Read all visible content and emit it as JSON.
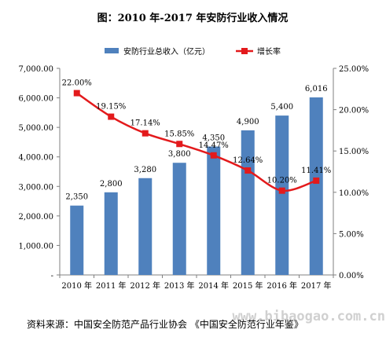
{
  "chart_data": {
    "type": "bar+line",
    "title": "图：2010 年-2017 年安防行业收入情况",
    "categories": [
      "2010 年",
      "2011 年",
      "2012 年",
      "2013 年",
      "2014 年",
      "2015 年",
      "2016 年",
      "2017 年"
    ],
    "series": [
      {
        "name": "安防行业总收入（亿元）",
        "type": "bar",
        "axis": "left",
        "color": "#4f81bd",
        "values": [
          2350,
          2800,
          3280,
          3800,
          4350,
          4900,
          5400,
          6016
        ],
        "labels": [
          "2,350",
          "2,800",
          "3,280",
          "3,800",
          "4,350",
          "4,900",
          "5,400",
          "6,016"
        ]
      },
      {
        "name": "增长率",
        "type": "line",
        "axis": "right",
        "color": "#e31a1c",
        "values": [
          22.0,
          19.15,
          17.14,
          15.85,
          14.47,
          12.64,
          10.2,
          11.41
        ],
        "labels": [
          "22.00%",
          "19.15%",
          "17.14%",
          "15.85%",
          "14.47%",
          "12.64%",
          "10.20%",
          "11.41%"
        ]
      }
    ],
    "y_left": {
      "range": [
        0,
        7000
      ],
      "ticks": [
        {
          "value": 0,
          "label": "-"
        },
        {
          "value": 1000,
          "label": "1,000.00"
        },
        {
          "value": 2000,
          "label": "2,000.00"
        },
        {
          "value": 3000,
          "label": "3,000.00"
        },
        {
          "value": 4000,
          "label": "4,000.00"
        },
        {
          "value": 5000,
          "label": "5,000.00"
        },
        {
          "value": 6000,
          "label": "6,000.00"
        },
        {
          "value": 7000,
          "label": "7,000.00"
        }
      ]
    },
    "y_right": {
      "range": [
        0,
        25
      ],
      "ticks": [
        {
          "value": 0,
          "label": "0.00%"
        },
        {
          "value": 5,
          "label": "5.00%"
        },
        {
          "value": 10,
          "label": "10.00%"
        },
        {
          "value": 15,
          "label": "15.00%"
        },
        {
          "value": 20,
          "label": "20.00%"
        },
        {
          "value": 25,
          "label": "25.00%"
        }
      ]
    },
    "legend_position": "top",
    "grid": false
  },
  "source": "资料来源：中国安全防范产品行业协会 《中国安全防范行业年鉴》",
  "watermark": "www.bibaogao.com.cn"
}
